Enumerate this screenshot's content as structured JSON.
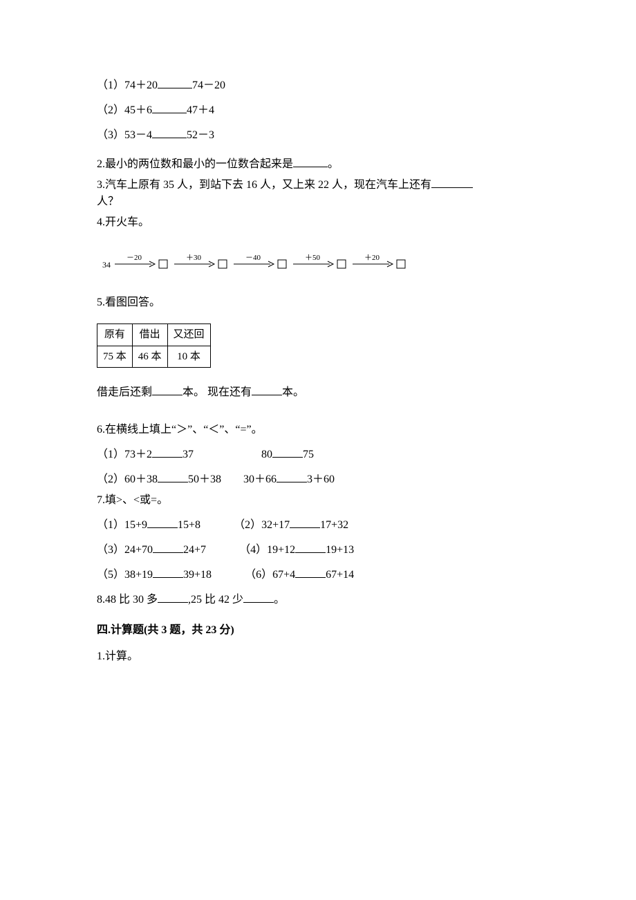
{
  "q1": {
    "a_label": "（1）74＋20",
    "a_right": "74－20",
    "b_label": "（2）45＋6",
    "b_right": "47＋4",
    "c_label": "（3）53－4",
    "c_right": "52－3"
  },
  "q2": {
    "prefix": "2.最小的两位数和最小的一位数合起来是",
    "suffix": "。"
  },
  "q3": {
    "prefix": "3.汽车上原有 35 人，到站下去 16 人，又上来 22 人，现在汽车上还有",
    "suffix": "人？"
  },
  "q4": {
    "label": "4.开火车。",
    "start": "34",
    "ops": [
      "－20",
      "＋30",
      "－40",
      "＋50",
      "＋20"
    ],
    "font_size_start": 12,
    "font_size_op": 11,
    "box_size": 12,
    "stroke": "#000000",
    "bg": "#ffffff"
  },
  "q5": {
    "label": "5.看图回答。",
    "headers": [
      "原有",
      "借出",
      "又还回"
    ],
    "values": [
      "75 本",
      "46 本",
      "10 本"
    ],
    "sentence_part1": "借走后还剩",
    "sentence_mid": "本。 现在还有",
    "sentence_end": "本。"
  },
  "q6": {
    "label": "6.在横线上填上“＞”、“＜”、“=”。",
    "r1a_left": "（1）73＋2",
    "r1a_right": "37",
    "r1b_left": "80",
    "r1b_right": "75",
    "r2a_left": "（2）60＋38",
    "r2a_right": "50＋38",
    "r2b_left": "30＋66",
    "r2b_right": "3＋60"
  },
  "q7": {
    "label": "7.填>、<或=。",
    "r1a_left": "（1）15+9",
    "r1a_right": "15+8",
    "r1b_left": "（2）32+17",
    "r1b_right": "17+32",
    "r2a_left": "（3）24+70",
    "r2a_right": "24+7",
    "r2b_left": "（4）19+12",
    "r2b_right": "19+13",
    "r3a_left": "（5）38+19",
    "r3a_right": "39+18",
    "r3b_left": "（6）67+4",
    "r3b_right": "67+14"
  },
  "q8": {
    "part1": "8.48 比 30 多",
    "mid": ",25 比 42 少",
    "end": "。"
  },
  "section4": {
    "title": "四.计算题(共 3 题，共 23 分)",
    "q1": "1.计算。"
  }
}
